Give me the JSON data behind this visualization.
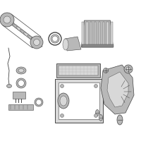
{
  "background_color": "#ffffff",
  "part_color": "#b8b8b8",
  "part_edge_color": "#444444",
  "light_gray": "#d8d8d8",
  "dark_gray": "#888888",
  "mid_gray": "#aaaaaa",
  "fig_width": 2.0,
  "fig_height": 2.0,
  "dpi": 100
}
